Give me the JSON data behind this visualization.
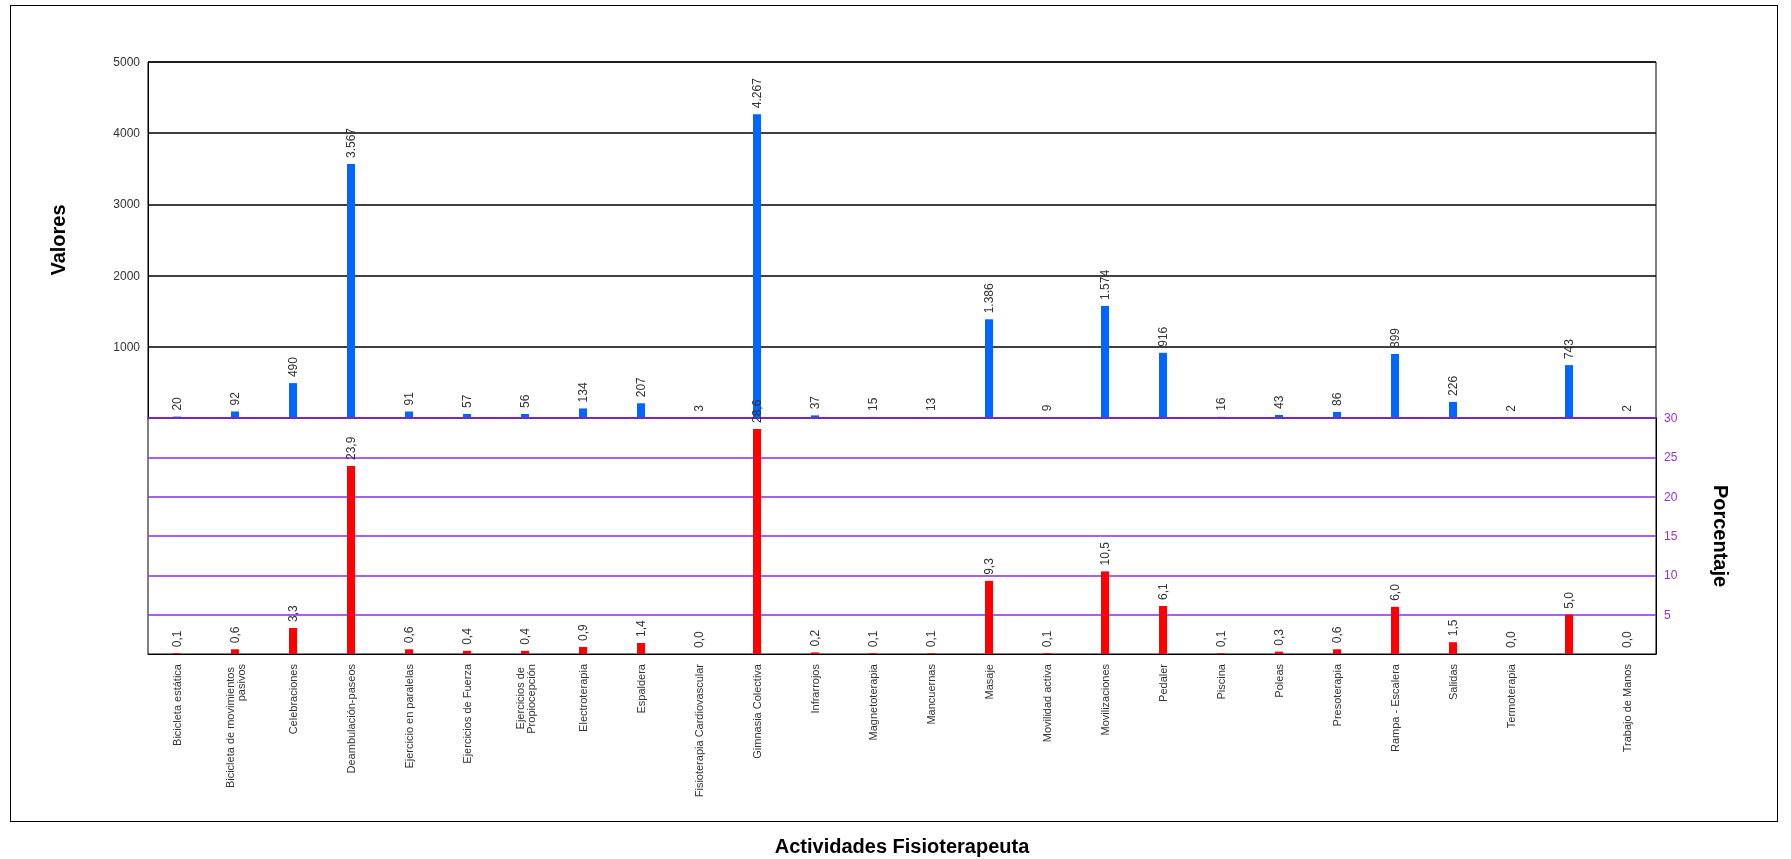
{
  "chart_data": [
    {
      "type": "bar",
      "ylabel": "Valores",
      "categories": [
        "Bicicleta estática",
        "Bicicleta de movimientos pasivos",
        "Celebraciones",
        "Deambulación-paseos",
        "Ejercicio en paralelas",
        "Ejercicios de Fuerza",
        "Ejercicios de Propiocepción",
        "Electroterapia",
        "Espaldera",
        "Fisioterapia Cardiovascular",
        "Gimnasia Colectiva",
        "Infrarrojos",
        "Magnetoterapia",
        "Mancuernas",
        "Masaje",
        "Movilidad activa",
        "Movilizaciones",
        "Pedaler",
        "Piscina",
        "Poleas",
        "Presoterapia",
        "Rampa - Escalera",
        "Salidas",
        "Termoterapia",
        null,
        "Trabajo de Manos"
      ],
      "values": [
        20,
        92,
        490,
        3567,
        91,
        57,
        56,
        134,
        207,
        3,
        4267,
        37,
        15,
        13,
        1386,
        9,
        1574,
        916,
        16,
        43,
        86,
        899,
        226,
        2,
        743,
        2
      ],
      "value_labels": [
        "20",
        "92",
        "490",
        "3.567",
        "91",
        "57",
        "56",
        "134",
        "207",
        "3",
        "4.267",
        "37",
        "15",
        "13",
        "1.386",
        "9",
        "1.574",
        "916",
        "16",
        "43",
        "86",
        "899",
        "226",
        "2",
        "743",
        "2"
      ],
      "color": "#0066ff",
      "ylim": [
        0,
        5000
      ],
      "yticks": [
        1000,
        2000,
        3000,
        4000,
        5000
      ],
      "grid": "y",
      "tick_labels": "y"
    },
    {
      "type": "bar",
      "xlabel": "Actividades Fisioterapeuta",
      "y2label": "Porcentaje",
      "categories": [
        "Bicicleta estática",
        "Bicicleta de movimientos pasivos",
        "Celebraciones",
        "Deambulación-paseos",
        "Ejercicio en paralelas",
        "Ejercicios de Fuerza",
        "Ejercicios de Propiocepción",
        "Electroterapia",
        "Espaldera",
        "Fisioterapia Cardiovascular",
        "Gimnasia Colectiva",
        "Infrarrojos",
        "Magnetoterapia",
        "Mancuernas",
        "Masaje",
        "Movilidad activa",
        "Movilizaciones",
        "Pedaler",
        "Piscina",
        "Poleas",
        "Presoterapia",
        "Rampa - Escalera",
        "Salidas",
        "Termoterapia",
        null,
        "Trabajo de Manos"
      ],
      "series": [
        {
          "color": "#ff0000",
          "axis": "y2",
          "values": [
            0.1,
            0.6,
            3.3,
            23.9,
            0.6,
            0.4,
            0.4,
            0.9,
            1.4,
            0.0,
            28.6,
            0.2,
            0.1,
            0.1,
            9.3,
            0.1,
            10.5,
            6.1,
            0.1,
            0.3,
            0.6,
            6.0,
            1.5,
            0.0,
            5.0,
            0.0
          ],
          "value_labels": [
            "0,1",
            "0,6",
            "3,3",
            "23,9",
            "0,6",
            "0,4",
            "0,4",
            "0,9",
            "1,4",
            "0,0",
            "28,6",
            "0,2",
            "0,1",
            "0,1",
            "9,3",
            "0,1",
            "10,5",
            "6,1",
            "0,1",
            "0,3",
            "0,6",
            "6,0",
            "1,5",
            "0,0",
            "5,0",
            "0,0"
          ]
        }
      ],
      "y2lim": [
        0,
        30
      ],
      "y2ticks": [
        5,
        10,
        15,
        20,
        25,
        30
      ],
      "grid": "y"
    }
  ]
}
